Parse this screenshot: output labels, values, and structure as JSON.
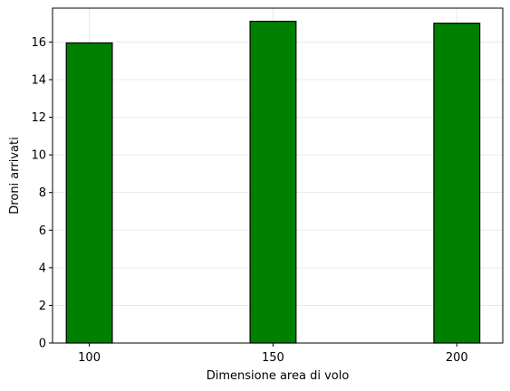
{
  "chart_data": {
    "type": "bar",
    "x": [
      100,
      150,
      200
    ],
    "categories": [
      "100",
      "150",
      "200"
    ],
    "values": [
      15.95,
      17.1,
      17.0
    ],
    "xlabel": "Dimensione area di volo",
    "ylabel": "Droni arrivati",
    "xlim": [
      90,
      212.5
    ],
    "ylim": [
      0,
      17.8
    ],
    "yticks": [
      0,
      2,
      4,
      6,
      8,
      10,
      12,
      14,
      16
    ],
    "xticks": [
      100,
      150,
      200
    ],
    "grid": true,
    "bar_color": "#008000",
    "bar_edge_color": "#000000"
  }
}
